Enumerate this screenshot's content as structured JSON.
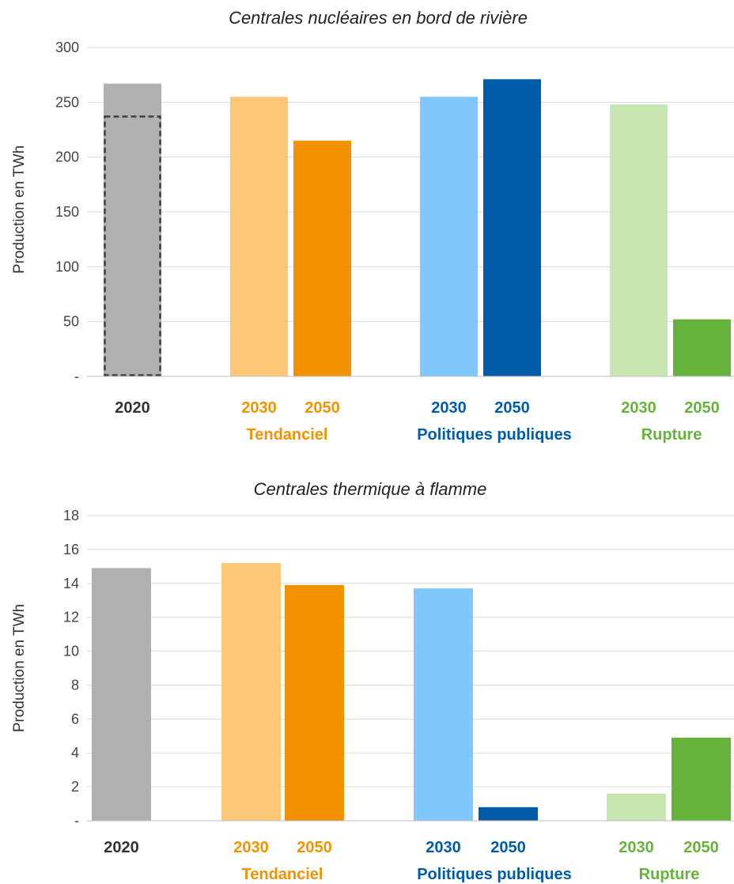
{
  "chart_data": [
    {
      "type": "bar",
      "title": "Centrales nucléaires en bord de rivière",
      "ylabel": "Production en TWh",
      "ylim": [
        0,
        300
      ],
      "yticks": [
        "-",
        "50",
        "100",
        "150",
        "200",
        "250",
        "300"
      ],
      "grid": true,
      "categories": [
        "2020",
        "2030",
        "2050",
        "2030",
        "2050",
        "2030",
        "2050"
      ],
      "groups": [
        "",
        "Tendanciel",
        "Tendanciel",
        "Politiques publiques",
        "Politiques publiques",
        "Rupture",
        "Rupture"
      ],
      "group_labels": [
        "Tendanciel",
        "Politiques publiques",
        "Rupture"
      ],
      "values": [
        267,
        255,
        215,
        255,
        271,
        248,
        52
      ],
      "reference_2020_dashed": 237,
      "colors": [
        "#b0b0b0",
        "#fcc878",
        "#f39200",
        "#7fc7fd",
        "#005ca9",
        "#c8e6b0",
        "#66b33c"
      ]
    },
    {
      "type": "bar",
      "title": "Centrales thermique à flamme",
      "ylabel": "Production en TWh",
      "ylim": [
        0,
        18
      ],
      "yticks": [
        "-",
        "2",
        "4",
        "6",
        "8",
        "10",
        "12",
        "14",
        "16",
        "18"
      ],
      "grid": true,
      "categories": [
        "2020",
        "2030",
        "2050",
        "2030",
        "2050",
        "2030",
        "2050"
      ],
      "groups": [
        "",
        "Tendanciel",
        "Tendanciel",
        "Politiques publiques",
        "Politiques publiques",
        "Rupture",
        "Rupture"
      ],
      "group_labels": [
        "Tendanciel",
        "Politiques publiques",
        "Rupture"
      ],
      "values": [
        14.9,
        15.2,
        13.9,
        13.7,
        0.8,
        1.6,
        4.9
      ],
      "colors": [
        "#b0b0b0",
        "#fcc878",
        "#f39200",
        "#7fc7fd",
        "#005ca9",
        "#c8e6b0",
        "#66b33c"
      ]
    }
  ],
  "label_colors": {
    "base": "#333333",
    "Tendanciel": "#f39200",
    "Politiques publiques": "#005ca9",
    "Rupture": "#66b33c"
  }
}
